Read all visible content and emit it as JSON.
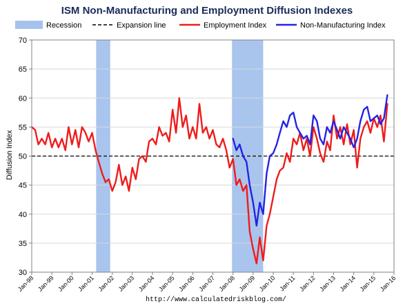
{
  "chart_data": {
    "type": "line",
    "title": "ISM Non-Manufacturing and Employment Diffusion Indexes",
    "xlabel": "",
    "ylabel": "Diffusion Index",
    "ylim": [
      30,
      70
    ],
    "yticks": [
      "30",
      "35",
      "40",
      "45",
      "50",
      "55",
      "60",
      "65",
      "70"
    ],
    "x_range": [
      1998.0,
      2016.0
    ],
    "xticks": [
      "Jan-98",
      "Jan-99",
      "Jan-00",
      "Jan-01",
      "Jan-02",
      "Jan-03",
      "Jan-04",
      "Jan-05",
      "Jan-06",
      "Jan-07",
      "Jan-08",
      "Jan-09",
      "Jan-10",
      "Jan-11",
      "Jan-12",
      "Jan-13",
      "Jan-14",
      "Jan-15",
      "Jan-16"
    ],
    "expansion_line": 50,
    "recessions": [
      {
        "start": 2001.2,
        "end": 2001.9
      },
      {
        "start": 2007.95,
        "end": 2009.5
      }
    ],
    "legend": {
      "position": "top",
      "items": [
        {
          "label": "Recession",
          "kind": "patch",
          "color": "#a4c2ec"
        },
        {
          "label": "Expansion line",
          "kind": "dashed",
          "color": "#000000"
        },
        {
          "label": "Employment Index",
          "kind": "line",
          "color": "#ee1c1c"
        },
        {
          "label": "Non-Manufacturing Index",
          "kind": "line",
          "color": "#2323e6"
        }
      ]
    },
    "series": [
      {
        "name": "Employment Index",
        "color": "#ee1c1c",
        "points": [
          [
            1998.0,
            55
          ],
          [
            1998.17,
            54.5
          ],
          [
            1998.33,
            52
          ],
          [
            1998.5,
            53
          ],
          [
            1998.67,
            52
          ],
          [
            1998.83,
            54
          ],
          [
            1999.0,
            51.5
          ],
          [
            1999.17,
            53
          ],
          [
            1999.33,
            51.5
          ],
          [
            1999.5,
            53
          ],
          [
            1999.67,
            51
          ],
          [
            1999.83,
            55
          ],
          [
            2000.0,
            52
          ],
          [
            2000.17,
            54.5
          ],
          [
            2000.33,
            51.5
          ],
          [
            2000.5,
            55
          ],
          [
            2000.67,
            54
          ],
          [
            2000.83,
            52.5
          ],
          [
            2001.0,
            54
          ],
          [
            2001.17,
            51
          ],
          [
            2001.33,
            49
          ],
          [
            2001.5,
            47
          ],
          [
            2001.67,
            45.5
          ],
          [
            2001.83,
            46
          ],
          [
            2002.0,
            44
          ],
          [
            2002.17,
            45.5
          ],
          [
            2002.33,
            48.5
          ],
          [
            2002.5,
            45
          ],
          [
            2002.67,
            46.5
          ],
          [
            2002.83,
            44
          ],
          [
            2003.0,
            48
          ],
          [
            2003.17,
            46
          ],
          [
            2003.33,
            49.5
          ],
          [
            2003.5,
            50
          ],
          [
            2003.67,
            49
          ],
          [
            2003.83,
            52.5
          ],
          [
            2004.0,
            53
          ],
          [
            2004.17,
            52
          ],
          [
            2004.33,
            55
          ],
          [
            2004.5,
            53.5
          ],
          [
            2004.67,
            54
          ],
          [
            2004.83,
            52.5
          ],
          [
            2005.0,
            58
          ],
          [
            2005.17,
            54
          ],
          [
            2005.33,
            60
          ],
          [
            2005.5,
            55
          ],
          [
            2005.67,
            57
          ],
          [
            2005.83,
            53
          ],
          [
            2006.0,
            55
          ],
          [
            2006.17,
            53
          ],
          [
            2006.33,
            59
          ],
          [
            2006.5,
            54
          ],
          [
            2006.67,
            55
          ],
          [
            2006.83,
            53
          ],
          [
            2007.0,
            54.5
          ],
          [
            2007.17,
            52
          ],
          [
            2007.33,
            51.5
          ],
          [
            2007.5,
            53
          ],
          [
            2007.67,
            51
          ],
          [
            2007.83,
            48
          ],
          [
            2008.0,
            49.5
          ],
          [
            2008.17,
            45
          ],
          [
            2008.33,
            46
          ],
          [
            2008.5,
            44
          ],
          [
            2008.67,
            45
          ],
          [
            2008.83,
            37
          ],
          [
            2009.0,
            34
          ],
          [
            2009.17,
            31.5
          ],
          [
            2009.33,
            36
          ],
          [
            2009.5,
            32
          ],
          [
            2009.67,
            38
          ],
          [
            2009.83,
            40
          ],
          [
            2010.0,
            43
          ],
          [
            2010.17,
            46
          ],
          [
            2010.33,
            47.5
          ],
          [
            2010.5,
            48
          ],
          [
            2010.67,
            50.5
          ],
          [
            2010.83,
            49
          ],
          [
            2011.0,
            53
          ],
          [
            2011.17,
            52
          ],
          [
            2011.33,
            54
          ],
          [
            2011.5,
            51
          ],
          [
            2011.67,
            53
          ],
          [
            2011.83,
            50
          ],
          [
            2012.0,
            55
          ],
          [
            2012.17,
            53
          ],
          [
            2012.33,
            50.5
          ],
          [
            2012.5,
            49
          ],
          [
            2012.67,
            52.5
          ],
          [
            2012.83,
            51
          ],
          [
            2013.0,
            57
          ],
          [
            2013.17,
            53
          ],
          [
            2013.33,
            55
          ],
          [
            2013.5,
            52
          ],
          [
            2013.67,
            55.5
          ],
          [
            2013.83,
            52
          ],
          [
            2014.0,
            54.5
          ],
          [
            2014.17,
            48
          ],
          [
            2014.33,
            53
          ],
          [
            2014.5,
            55
          ],
          [
            2014.67,
            56
          ],
          [
            2014.83,
            54
          ],
          [
            2015.0,
            56.5
          ],
          [
            2015.17,
            55
          ],
          [
            2015.33,
            57
          ],
          [
            2015.5,
            52.5
          ],
          [
            2015.67,
            59
          ]
        ]
      },
      {
        "name": "Non-Manufacturing Index",
        "color": "#2323e6",
        "points": [
          [
            2008.0,
            53
          ],
          [
            2008.17,
            51
          ],
          [
            2008.33,
            52
          ],
          [
            2008.5,
            50
          ],
          [
            2008.67,
            49
          ],
          [
            2008.83,
            45
          ],
          [
            2009.0,
            42
          ],
          [
            2009.17,
            38
          ],
          [
            2009.33,
            42
          ],
          [
            2009.5,
            40
          ],
          [
            2009.67,
            47
          ],
          [
            2009.83,
            50
          ],
          [
            2010.0,
            50.5
          ],
          [
            2010.17,
            52
          ],
          [
            2010.33,
            54
          ],
          [
            2010.5,
            56
          ],
          [
            2010.67,
            55
          ],
          [
            2010.83,
            57
          ],
          [
            2011.0,
            57.5
          ],
          [
            2011.17,
            55
          ],
          [
            2011.33,
            54
          ],
          [
            2011.5,
            53
          ],
          [
            2011.67,
            53.5
          ],
          [
            2011.83,
            52
          ],
          [
            2012.0,
            57
          ],
          [
            2012.17,
            56
          ],
          [
            2012.33,
            53
          ],
          [
            2012.5,
            52
          ],
          [
            2012.67,
            55
          ],
          [
            2012.83,
            54
          ],
          [
            2013.0,
            56
          ],
          [
            2013.17,
            54.5
          ],
          [
            2013.33,
            53
          ],
          [
            2013.5,
            55
          ],
          [
            2013.67,
            54
          ],
          [
            2013.83,
            53
          ],
          [
            2014.0,
            51.5
          ],
          [
            2014.17,
            53
          ],
          [
            2014.33,
            56
          ],
          [
            2014.5,
            58
          ],
          [
            2014.67,
            58.5
          ],
          [
            2014.83,
            56
          ],
          [
            2015.0,
            56.5
          ],
          [
            2015.17,
            57
          ],
          [
            2015.33,
            55.5
          ],
          [
            2015.5,
            56.5
          ],
          [
            2015.67,
            60.5
          ]
        ]
      }
    ]
  },
  "source_url": "http://www.calculatedriskblog.com/"
}
